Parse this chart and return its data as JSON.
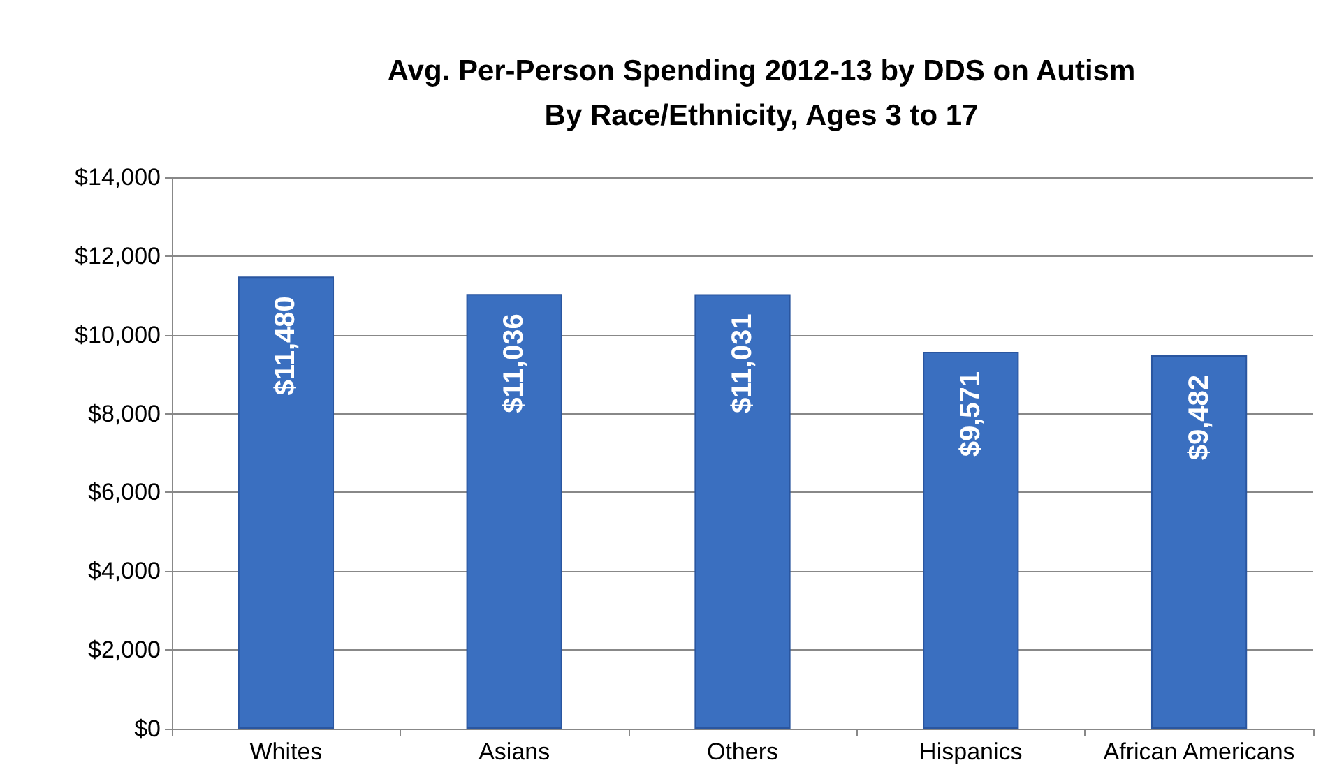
{
  "chart_data": {
    "type": "bar",
    "title": "Avg. Per-Person Spending 2012-13 by DDS on Autism\nBy Race/Ethnicity, Ages 3 to 17",
    "categories": [
      "Whites",
      "Asians",
      "Others",
      "Hispanics",
      "African Americans"
    ],
    "values": [
      11480,
      11036,
      11031,
      9571,
      9482
    ],
    "value_labels": [
      "$11,480",
      "$11,036",
      "$11,031",
      "$9,571",
      "$9,482"
    ],
    "color": "#3a6fc0",
    "ylim": [
      0,
      14000
    ],
    "yticks": [
      {
        "value": 0,
        "label": "$0"
      },
      {
        "value": 2000,
        "label": "$2,000"
      },
      {
        "value": 4000,
        "label": "$4,000"
      },
      {
        "value": 6000,
        "label": "$6,000"
      },
      {
        "value": 8000,
        "label": "$8,000"
      },
      {
        "value": 10000,
        "label": "$10,000"
      },
      {
        "value": 12000,
        "label": "$12,000"
      },
      {
        "value": 14000,
        "label": "$14,000"
      }
    ],
    "grid": "y"
  }
}
